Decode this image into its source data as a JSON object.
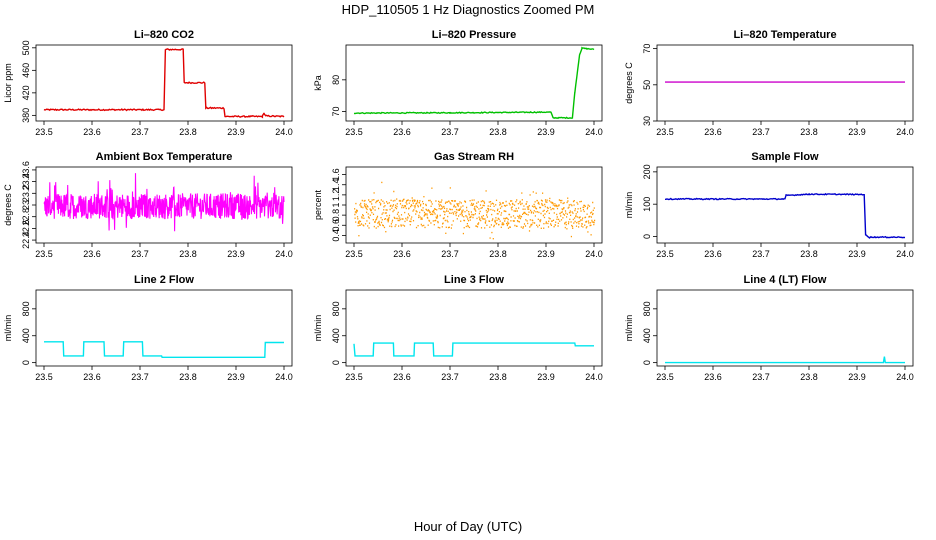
{
  "page_title": "HDP_110505  1 Hz Diagnostics Zoomed PM",
  "x_axis_label": "Hour of Day (UTC)",
  "chart_data": [
    {
      "type": "line",
      "title": "Li–820 CO2",
      "ylabel": "Licor ppm",
      "color": "#e00000",
      "xlim": [
        23.5,
        24.0
      ],
      "xticks": [
        23.5,
        23.6,
        23.7,
        23.8,
        23.9,
        24.0
      ],
      "ylim": [
        370,
        505
      ],
      "yticks": [
        380,
        420,
        460,
        500
      ],
      "noise": 1.2,
      "style": "line",
      "points": [
        [
          23.5,
          390
        ],
        [
          23.75,
          390
        ],
        [
          23.753,
          497
        ],
        [
          23.79,
          497
        ],
        [
          23.792,
          438
        ],
        [
          23.835,
          438
        ],
        [
          23.837,
          393
        ],
        [
          23.875,
          393
        ],
        [
          23.877,
          378
        ],
        [
          23.955,
          378
        ],
        [
          23.958,
          384
        ],
        [
          23.962,
          379
        ],
        [
          24.0,
          378
        ]
      ]
    },
    {
      "type": "line",
      "title": "Li–820 Pressure",
      "ylabel": "kPa",
      "color": "#00c000",
      "xlim": [
        23.5,
        24.0
      ],
      "xticks": [
        23.5,
        23.6,
        23.7,
        23.8,
        23.9,
        24.0
      ],
      "ylim": [
        67,
        91
      ],
      "yticks": [
        70,
        80
      ],
      "noise": 0.15,
      "style": "line",
      "points": [
        [
          23.5,
          69.5
        ],
        [
          23.7,
          69.6
        ],
        [
          23.91,
          69.8
        ],
        [
          23.915,
          68
        ],
        [
          23.955,
          68
        ],
        [
          23.96,
          76
        ],
        [
          23.97,
          88
        ],
        [
          23.975,
          90
        ],
        [
          24.0,
          89.6
        ]
      ]
    },
    {
      "type": "line",
      "title": "Li–820 Temperature",
      "ylabel": "degrees C",
      "color": "#cc00cc",
      "xlim": [
        23.5,
        24.0
      ],
      "xticks": [
        23.5,
        23.6,
        23.7,
        23.8,
        23.9,
        24.0
      ],
      "ylim": [
        30,
        72
      ],
      "yticks": [
        30,
        50,
        70
      ],
      "noise": 0,
      "style": "line",
      "points": [
        [
          23.5,
          51.5
        ],
        [
          24.0,
          51.5
        ]
      ]
    },
    {
      "type": "line",
      "title": "Ambient Box Temperature",
      "ylabel": "degrees C",
      "color": "#ff00ff",
      "xlim": [
        23.5,
        24.0
      ],
      "xticks": [
        23.5,
        23.6,
        23.7,
        23.8,
        23.9,
        24.0
      ],
      "ylim": [
        22.35,
        23.65
      ],
      "yticks": [
        22.4,
        22.6,
        22.8,
        23.0,
        23.2,
        23.4,
        23.6
      ],
      "noise": 0.22,
      "style": "dense",
      "base": 22.98,
      "points": [
        [
          23.5,
          22.98
        ],
        [
          24.0,
          22.98
        ]
      ]
    },
    {
      "type": "scatter",
      "title": "Gas Stream RH",
      "ylabel": "percent",
      "color": "#ff9900",
      "xlim": [
        23.5,
        24.0
      ],
      "xticks": [
        23.5,
        23.6,
        23.7,
        23.8,
        23.9,
        24.0
      ],
      "ylim": [
        0.25,
        1.75
      ],
      "yticks": [
        0.4,
        0.6,
        0.8,
        1.0,
        1.2,
        1.4,
        1.6
      ],
      "noise": 0.28,
      "style": "dots",
      "base": 0.82,
      "points": [
        [
          23.5,
          0.82
        ],
        [
          24.0,
          0.82
        ]
      ]
    },
    {
      "type": "line",
      "title": "Sample Flow",
      "ylabel": "ml/min",
      "color": "#0000cc",
      "xlim": [
        23.5,
        24.0
      ],
      "xticks": [
        23.5,
        23.6,
        23.7,
        23.8,
        23.9,
        24.0
      ],
      "ylim": [
        -20,
        215
      ],
      "yticks": [
        0,
        100,
        200
      ],
      "noise": 1.5,
      "style": "line",
      "points": [
        [
          23.5,
          116
        ],
        [
          23.75,
          116
        ],
        [
          23.752,
          127
        ],
        [
          23.8,
          131
        ],
        [
          23.915,
          130
        ],
        [
          23.918,
          5
        ],
        [
          23.925,
          -2
        ],
        [
          24.0,
          -2
        ]
      ]
    },
    {
      "type": "line",
      "title": "Line 2 Flow",
      "ylabel": "ml/min",
      "color": "#00e5ee",
      "xlim": [
        23.5,
        24.0
      ],
      "xticks": [
        23.5,
        23.6,
        23.7,
        23.8,
        23.9,
        24.0
      ],
      "ylim": [
        -50,
        1080
      ],
      "yticks": [
        0,
        400,
        800
      ],
      "noise": 0,
      "style": "line",
      "points": [
        [
          23.5,
          310
        ],
        [
          23.54,
          310
        ],
        [
          23.541,
          100
        ],
        [
          23.582,
          100
        ],
        [
          23.583,
          310
        ],
        [
          23.625,
          310
        ],
        [
          23.626,
          100
        ],
        [
          23.665,
          100
        ],
        [
          23.666,
          310
        ],
        [
          23.705,
          310
        ],
        [
          23.706,
          100
        ],
        [
          23.745,
          100
        ],
        [
          23.746,
          80
        ],
        [
          23.96,
          80
        ],
        [
          23.961,
          300
        ],
        [
          24.0,
          300
        ]
      ]
    },
    {
      "type": "line",
      "title": "Line 3 Flow",
      "ylabel": "ml/min",
      "color": "#00e5ee",
      "xlim": [
        23.5,
        24.0
      ],
      "xticks": [
        23.5,
        23.6,
        23.7,
        23.8,
        23.9,
        24.0
      ],
      "ylim": [
        -50,
        1080
      ],
      "yticks": [
        0,
        400,
        800
      ],
      "noise": 0,
      "style": "line",
      "points": [
        [
          23.5,
          280
        ],
        [
          23.502,
          100
        ],
        [
          23.54,
          100
        ],
        [
          23.541,
          290
        ],
        [
          23.582,
          290
        ],
        [
          23.583,
          100
        ],
        [
          23.625,
          100
        ],
        [
          23.626,
          290
        ],
        [
          23.665,
          290
        ],
        [
          23.666,
          100
        ],
        [
          23.705,
          100
        ],
        [
          23.706,
          290
        ],
        [
          23.96,
          290
        ],
        [
          23.961,
          250
        ],
        [
          24.0,
          250
        ]
      ]
    },
    {
      "type": "line",
      "title": "Line 4 (LT) Flow",
      "ylabel": "ml/min",
      "color": "#00e5ee",
      "xlim": [
        23.5,
        24.0
      ],
      "xticks": [
        23.5,
        23.6,
        23.7,
        23.8,
        23.9,
        24.0
      ],
      "ylim": [
        -50,
        1080
      ],
      "yticks": [
        0,
        400,
        800
      ],
      "noise": 0,
      "style": "line",
      "points": [
        [
          23.5,
          0
        ],
        [
          23.955,
          0
        ],
        [
          23.957,
          90
        ],
        [
          23.959,
          0
        ],
        [
          24.0,
          0
        ]
      ]
    }
  ]
}
